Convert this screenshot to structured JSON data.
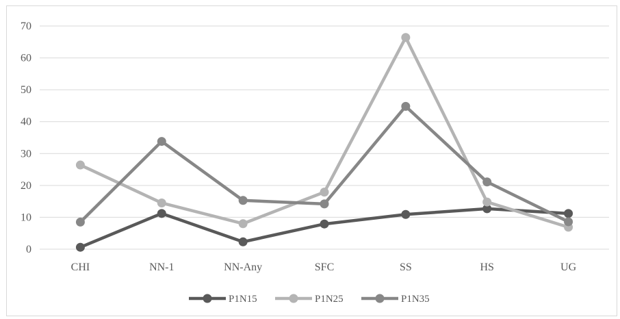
{
  "chart_data": {
    "type": "line",
    "categories": [
      "CHI",
      "NN-1",
      "NN-Any",
      "SFC",
      "SS",
      "HS",
      "UG"
    ],
    "series": [
      {
        "name": "P1N15",
        "color": "#595959",
        "values": [
          0.6,
          11.2,
          2.3,
          7.9,
          10.9,
          12.7,
          11.2
        ]
      },
      {
        "name": "P1N25",
        "color": "#b4b4b4",
        "values": [
          26.4,
          14.5,
          8.0,
          17.9,
          66.4,
          14.8,
          6.9
        ]
      },
      {
        "name": "P1N35",
        "color": "#878787",
        "values": [
          8.5,
          33.8,
          15.3,
          14.2,
          44.8,
          21.1,
          8.6
        ]
      }
    ],
    "ylim": [
      0,
      70
    ],
    "yticks": [
      0,
      10,
      20,
      30,
      40,
      50,
      60,
      70
    ],
    "grid": true,
    "legend": "bottom"
  }
}
